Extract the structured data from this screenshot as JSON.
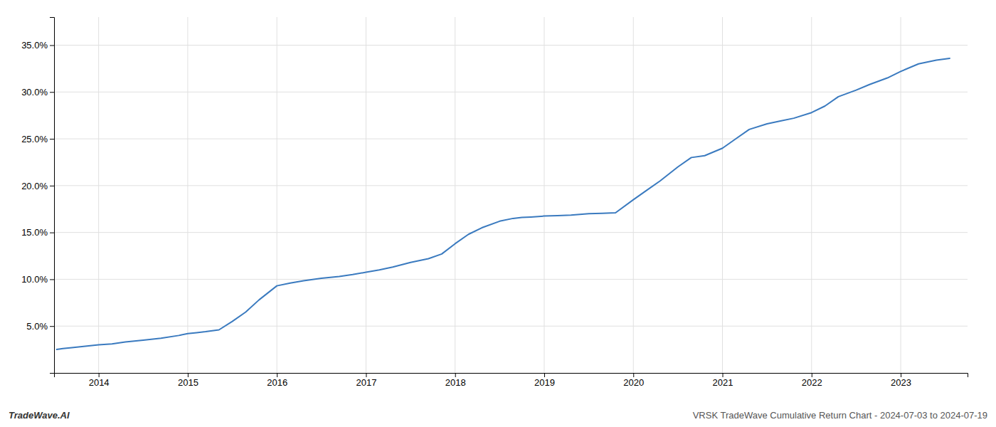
{
  "chart_data": {
    "type": "line",
    "title": "VRSK TradeWave Cumulative Return Chart - 2024-07-03 to 2024-07-19",
    "annotations": [
      "TradeWave.AI"
    ],
    "color": "#3a7abf",
    "x": [
      2013.53,
      2013.6,
      2013.7,
      2013.85,
      2014.0,
      2014.15,
      2014.3,
      2014.5,
      2014.7,
      2014.9,
      2015.0,
      2015.1,
      2015.2,
      2015.35,
      2015.5,
      2015.65,
      2015.8,
      2016.0,
      2016.15,
      2016.3,
      2016.5,
      2016.7,
      2016.85,
      2017.0,
      2017.15,
      2017.3,
      2017.5,
      2017.7,
      2017.85,
      2018.0,
      2018.15,
      2018.3,
      2018.5,
      2018.65,
      2018.75,
      2018.85,
      2019.0,
      2019.15,
      2019.3,
      2019.5,
      2019.65,
      2019.8,
      2020.0,
      2020.15,
      2020.3,
      2020.5,
      2020.65,
      2020.8,
      2021.0,
      2021.15,
      2021.3,
      2021.5,
      2021.65,
      2021.8,
      2022.0,
      2022.15,
      2022.3,
      2022.5,
      2022.65,
      2022.85,
      2023.0,
      2023.2,
      2023.4,
      2023.55
    ],
    "values": [
      2.5,
      2.6,
      2.7,
      2.85,
      3.0,
      3.1,
      3.3,
      3.5,
      3.7,
      4.0,
      4.2,
      4.3,
      4.4,
      4.6,
      5.5,
      6.5,
      7.8,
      9.3,
      9.6,
      9.85,
      10.1,
      10.3,
      10.5,
      10.75,
      11.0,
      11.3,
      11.8,
      12.2,
      12.7,
      13.8,
      14.8,
      15.5,
      16.2,
      16.5,
      16.6,
      16.65,
      16.75,
      16.8,
      16.85,
      17.0,
      17.05,
      17.1,
      18.5,
      19.5,
      20.5,
      22.0,
      23.0,
      23.2,
      24.0,
      25.0,
      26.0,
      26.6,
      26.9,
      27.2,
      27.8,
      28.5,
      29.5,
      30.2,
      30.8,
      31.5,
      32.2,
      33.0,
      33.4,
      33.6
    ],
    "xlim": [
      2013.5,
      2023.75
    ],
    "ylim": [
      0,
      38
    ],
    "xticks": [
      2014,
      2015,
      2016,
      2017,
      2018,
      2019,
      2020,
      2021,
      2022,
      2023
    ],
    "yticks": [
      {
        "value": 5.0,
        "label": "5.0%"
      },
      {
        "value": 10.0,
        "label": "10.0%"
      },
      {
        "value": 15.0,
        "label": "15.0%"
      },
      {
        "value": 20.0,
        "label": "20.0%"
      },
      {
        "value": 25.0,
        "label": "25.0%"
      },
      {
        "value": 30.0,
        "label": "30.0%"
      },
      {
        "value": 35.0,
        "label": "35.0%"
      }
    ],
    "grid": true
  }
}
